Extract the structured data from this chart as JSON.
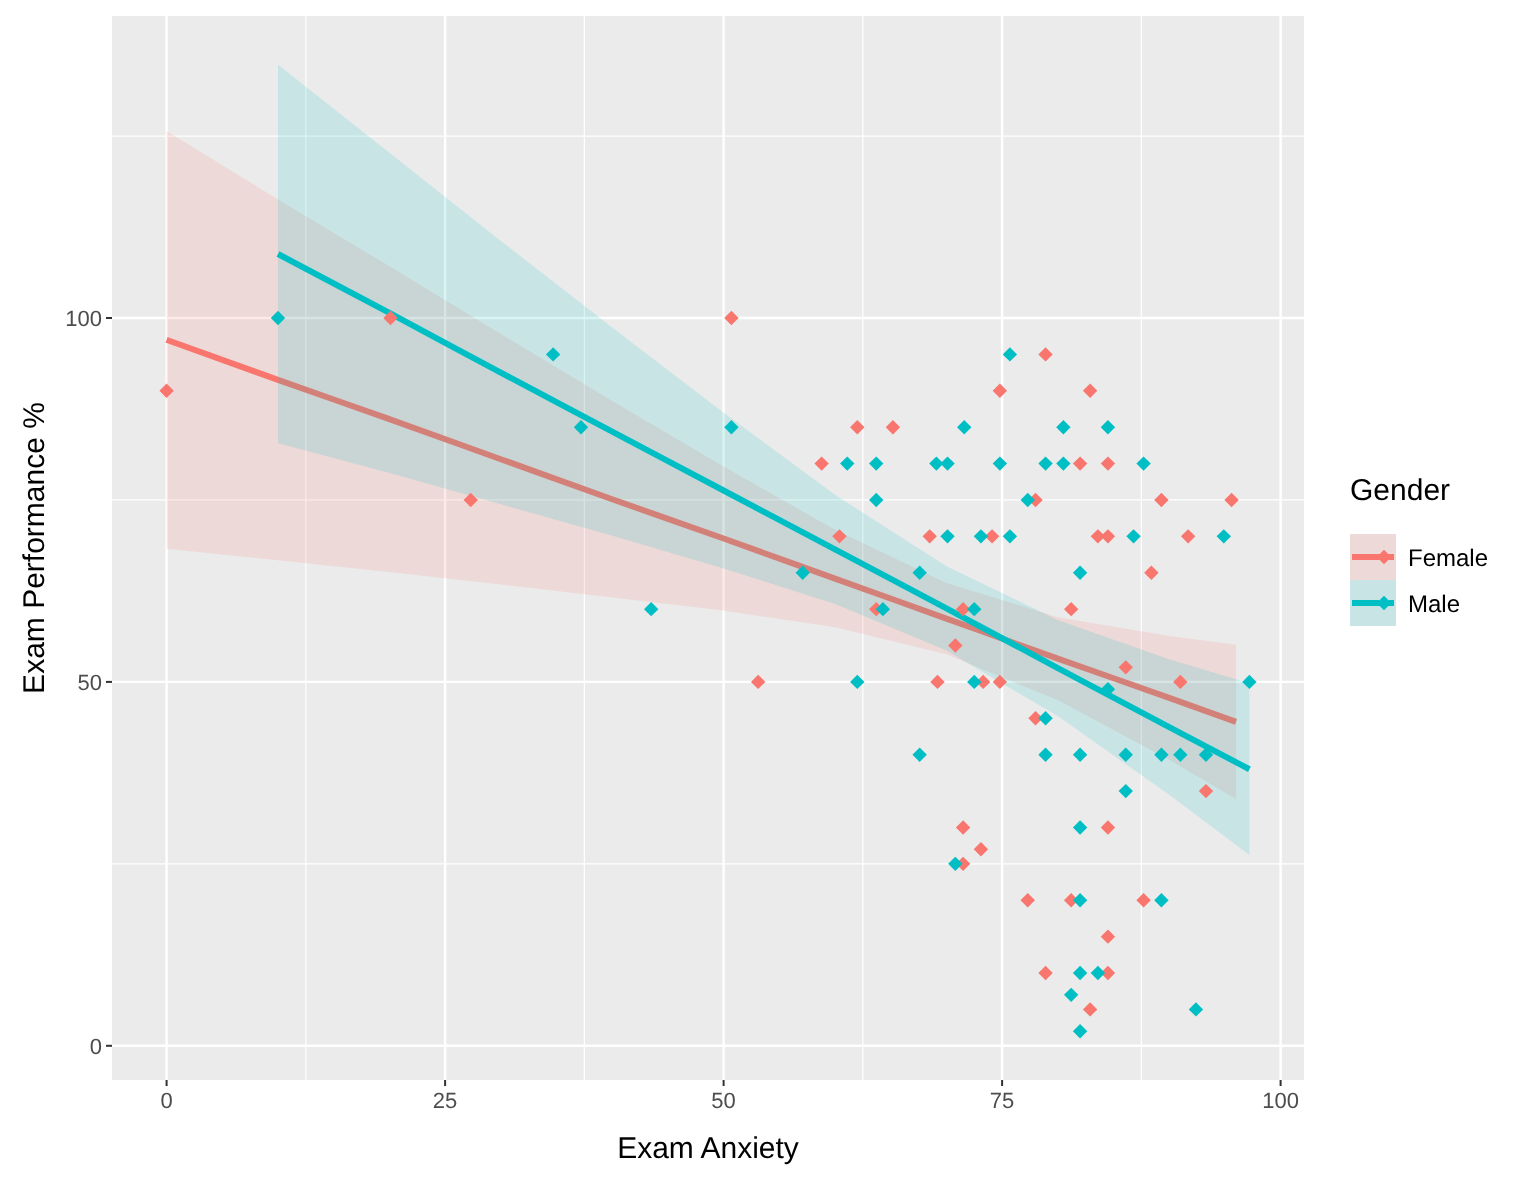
{
  "chart_data": {
    "type": "scatter",
    "xlabel": "Exam Anxiety",
    "ylabel": "Exam Performance %",
    "legend_title": "Gender",
    "xlim": [
      -4.9,
      102.1
    ],
    "ylim": [
      -4.7,
      141.5
    ],
    "xticks": [
      0,
      25,
      50,
      75,
      100
    ],
    "yticks": [
      0,
      50,
      100
    ],
    "grid": true,
    "legend": "right",
    "marker": "diamond",
    "line_style": "solid",
    "series": [
      {
        "name": "Female",
        "color": "#f8766d",
        "x": [
          0,
          20.1,
          27.3,
          50.7,
          53.1,
          62,
          65.2,
          58.8,
          60.4,
          63.7,
          68.5,
          71.5,
          70.8,
          69.2,
          73.3,
          74.8,
          74.1,
          74.8,
          71.5,
          73.1,
          71.5,
          78.9,
          82.9,
          82,
          84.5,
          78,
          89.3,
          95.6,
          83.6,
          84.5,
          91.7,
          88.4,
          81.2,
          86.1,
          91,
          78,
          93.3,
          84.5,
          77.3,
          81.2,
          87.7,
          84.5,
          78.9,
          84.5,
          82.9
        ],
        "values": [
          90,
          100,
          75,
          100,
          50,
          85,
          85,
          80,
          70,
          60,
          70,
          60,
          55,
          50,
          50,
          50,
          70,
          90,
          30,
          27,
          25,
          95,
          90,
          80,
          80,
          75,
          75,
          75,
          70,
          70,
          70,
          65,
          60,
          52,
          50,
          45,
          35,
          30,
          20,
          20,
          20,
          15,
          10,
          10,
          5
        ]
      },
      {
        "name": "Male",
        "color": "#00bfc4",
        "x": [
          10,
          34.7,
          37.2,
          43.5,
          50.7,
          57.1,
          61.1,
          63.7,
          63.7,
          64.3,
          62,
          67.6,
          69.1,
          70.1,
          70.1,
          71.6,
          73.1,
          72.5,
          72.5,
          67.6,
          70.8,
          74.8,
          75.7,
          80.5,
          84.5,
          78.9,
          80.5,
          87.7,
          77.3,
          75.7,
          86.8,
          94.9,
          82,
          84.5,
          97.2,
          78.9,
          78.9,
          82,
          86.1,
          89.3,
          91,
          93.3,
          86.1,
          82,
          82,
          89.3,
          82,
          83.6,
          81.2,
          92.4,
          82
        ],
        "values": [
          100,
          95,
          85,
          60,
          85,
          65,
          80,
          80,
          75,
          60,
          50,
          65,
          80,
          80,
          70,
          85,
          70,
          60,
          50,
          40,
          25,
          80,
          95,
          85,
          85,
          80,
          80,
          80,
          75,
          70,
          70,
          70,
          65,
          49,
          50,
          45,
          40,
          40,
          40,
          40,
          40,
          40,
          35,
          30,
          20,
          20,
          10,
          10,
          7,
          5,
          2
        ]
      },
      {
        "type": "line",
        "marker": "none",
        "color": "#f8766d",
        "x": [
          0,
          10,
          20,
          30,
          40,
          50,
          60,
          70,
          80,
          90,
          96
        ],
        "values": [
          97,
          91.5,
          86.1,
          80.6,
          75.1,
          69.7,
          64.2,
          58.7,
          53.2,
          47.8,
          44.5
        ],
        "lower": [
          68.3,
          66.7,
          65.1,
          63.4,
          61.6,
          59.8,
          57.5,
          53.8,
          47.5,
          39.3,
          33.9
        ],
        "upper": [
          125.7,
          116.3,
          107.1,
          97.8,
          88.6,
          79.6,
          70.9,
          63.6,
          58.9,
          56.3,
          55.1
        ]
      },
      {
        "type": "line",
        "marker": "none",
        "color": "#00bfc4",
        "x": [
          10,
          20,
          30,
          40,
          50,
          60,
          70,
          80,
          90,
          97.2
        ],
        "values": [
          108.8,
          100.7,
          92.5,
          84.4,
          76.3,
          68.2,
          60.1,
          51.9,
          43.8,
          38
        ],
        "lower": [
          82.8,
          78.7,
          74.4,
          70.1,
          65.6,
          60.7,
          54.3,
          45.3,
          34.5,
          26.2
        ],
        "upper": [
          134.8,
          122.7,
          110.6,
          98.7,
          87,
          75.7,
          65.9,
          58.5,
          53.1,
          49.8
        ]
      }
    ]
  }
}
